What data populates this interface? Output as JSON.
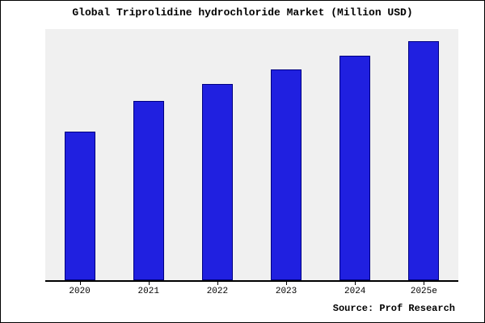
{
  "window": {
    "background": "#ffffff",
    "border_color": "#000000"
  },
  "chart_data": {
    "type": "bar",
    "title": "Global Triprolidine hydrochloride Market (Million USD)",
    "categories": [
      "2020",
      "2021",
      "2022",
      "2023",
      "2024",
      "2025e"
    ],
    "values": [
      62,
      75,
      82,
      88,
      94,
      100
    ],
    "xlabel": "",
    "ylabel": "",
    "ylim": [
      0,
      105
    ],
    "grid": false,
    "legend_position": "none",
    "plot_background": "#f0f0f0",
    "bar_fill": "#2020e0",
    "bar_border": "#000080",
    "axis_color": "#000000"
  },
  "source": {
    "label": "Source: Prof Research"
  }
}
